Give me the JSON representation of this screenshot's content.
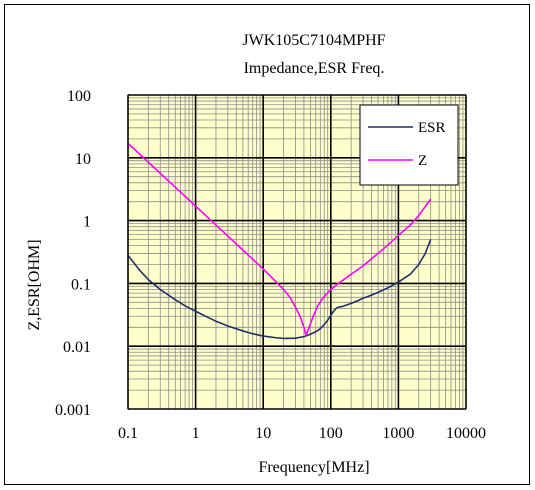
{
  "chart_data": {
    "type": "line",
    "title": "JWK105C7104MPHF",
    "subtitle": "Impedance,ESR  Freq.",
    "xlabel": "Frequency[MHz]",
    "ylabel": "Z,ESR[OHM]",
    "x_scale": "log",
    "y_scale": "log",
    "xlim": [
      0.1,
      10000
    ],
    "ylim": [
      0.001,
      100
    ],
    "x_tick_labels": [
      "0.1",
      "1",
      "10",
      "100",
      "1000",
      "10000"
    ],
    "y_tick_labels": [
      "0.001",
      "0.01",
      "0.1",
      "1",
      "10",
      "100"
    ],
    "grid": true,
    "plot_background": "#ffffcc",
    "legend_position": "top-right",
    "series": [
      {
        "name": "ESR",
        "color": "#1f2f6e",
        "points": [
          [
            0.1,
            0.28
          ],
          [
            0.15,
            0.16
          ],
          [
            0.2,
            0.115
          ],
          [
            0.3,
            0.08
          ],
          [
            0.5,
            0.055
          ],
          [
            0.7,
            0.044
          ],
          [
            1,
            0.036
          ],
          [
            1.5,
            0.029
          ],
          [
            2,
            0.025
          ],
          [
            3,
            0.021
          ],
          [
            5,
            0.0175
          ],
          [
            7,
            0.0158
          ],
          [
            10,
            0.0145
          ],
          [
            15,
            0.0137
          ],
          [
            20,
            0.0133
          ],
          [
            30,
            0.0134
          ],
          [
            40,
            0.0142
          ],
          [
            50,
            0.0155
          ],
          [
            60,
            0.017
          ],
          [
            70,
            0.019
          ],
          [
            80,
            0.022
          ],
          [
            90,
            0.026
          ],
          [
            100,
            0.031
          ],
          [
            110,
            0.036
          ],
          [
            120,
            0.04
          ],
          [
            130,
            0.042
          ],
          [
            150,
            0.043
          ],
          [
            200,
            0.048
          ],
          [
            250,
            0.053
          ],
          [
            300,
            0.058
          ],
          [
            400,
            0.065
          ],
          [
            500,
            0.072
          ],
          [
            700,
            0.085
          ],
          [
            1000,
            0.105
          ],
          [
            1500,
            0.14
          ],
          [
            2000,
            0.2
          ],
          [
            2500,
            0.3
          ],
          [
            3000,
            0.5
          ]
        ]
      },
      {
        "name": "Z",
        "color": "#ff00ff",
        "points": [
          [
            0.1,
            17
          ],
          [
            0.2,
            8.5
          ],
          [
            0.5,
            3.4
          ],
          [
            1,
            1.7
          ],
          [
            2,
            0.85
          ],
          [
            5,
            0.34
          ],
          [
            10,
            0.17
          ],
          [
            15,
            0.11
          ],
          [
            20,
            0.08
          ],
          [
            25,
            0.06
          ],
          [
            30,
            0.042
          ],
          [
            35,
            0.03
          ],
          [
            40,
            0.02
          ],
          [
            43,
            0.015
          ],
          [
            47,
            0.019
          ],
          [
            55,
            0.03
          ],
          [
            65,
            0.045
          ],
          [
            80,
            0.062
          ],
          [
            100,
            0.08
          ],
          [
            130,
            0.1
          ],
          [
            200,
            0.14
          ],
          [
            300,
            0.19
          ],
          [
            500,
            0.3
          ],
          [
            700,
            0.41
          ],
          [
            1000,
            0.58
          ],
          [
            1500,
            0.85
          ],
          [
            2000,
            1.2
          ],
          [
            3000,
            2.2
          ]
        ]
      }
    ]
  }
}
